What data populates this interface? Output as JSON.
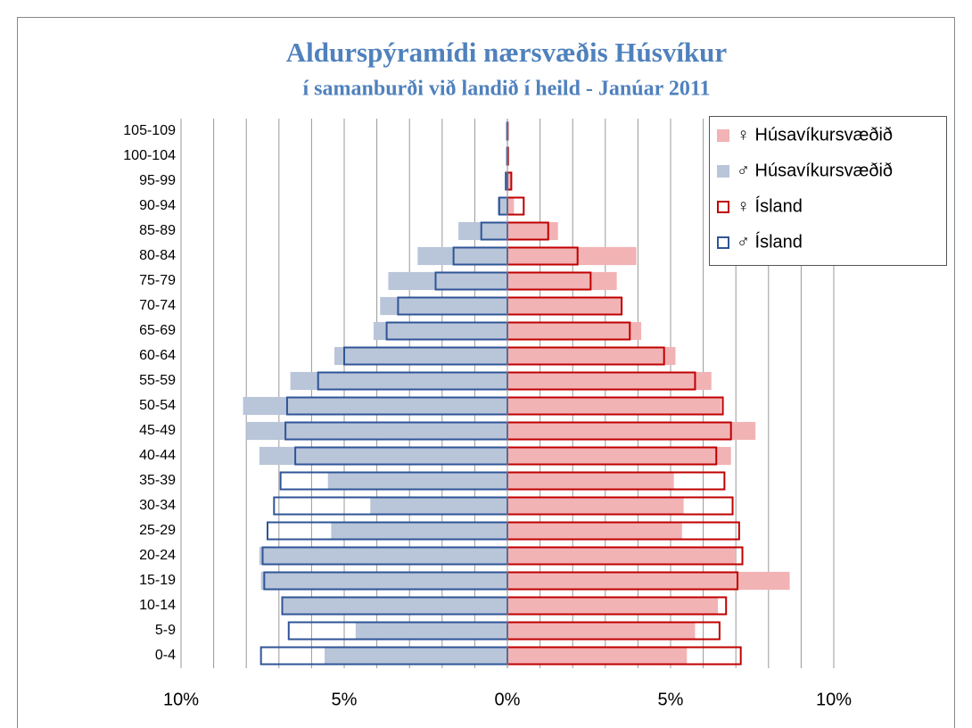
{
  "chart_data": {
    "type": "bar",
    "orientation": "horizontal",
    "title": "Aldurspýramídi nærsvæðis Húsvíkur",
    "subtitle": "í samanburði við landið í heild - Janúar 2011",
    "categories": [
      "0-4",
      "5-9",
      "10-14",
      "15-19",
      "20-24",
      "25-29",
      "30-34",
      "35-39",
      "40-44",
      "45-49",
      "50-54",
      "55-59",
      "60-64",
      "65-69",
      "70-74",
      "75-79",
      "80-84",
      "85-89",
      "90-94",
      "95-99",
      "100-104",
      "105-109"
    ],
    "series": [
      {
        "name": "♀ Húsavíkursvæðið",
        "style": "filled",
        "color": "#f2b3b5",
        "values": [
          5.5,
          5.75,
          6.45,
          8.65,
          7.0,
          5.35,
          5.4,
          5.1,
          6.85,
          7.6,
          6.55,
          6.25,
          5.15,
          4.1,
          3.5,
          3.35,
          3.95,
          1.55,
          0.2,
          0.1,
          0.01,
          0.01
        ]
      },
      {
        "name": "♂ Húsavíkursvæðið",
        "style": "filled",
        "color": "#b9c5d9",
        "values": [
          -5.6,
          -4.65,
          -6.9,
          -7.55,
          -7.6,
          -5.4,
          -4.2,
          -5.5,
          -7.6,
          -8.0,
          -8.1,
          -6.65,
          -5.3,
          -4.1,
          -3.9,
          -3.65,
          -2.75,
          -1.5,
          -0.3,
          -0.03,
          -0.01,
          -0.01
        ]
      },
      {
        "name": "♀ Ísland",
        "style": "outline",
        "color": "#c00000",
        "values": [
          7.15,
          6.5,
          6.7,
          7.05,
          7.2,
          7.1,
          6.9,
          6.65,
          6.4,
          6.85,
          6.6,
          5.75,
          4.8,
          3.75,
          3.5,
          2.55,
          2.15,
          1.25,
          0.5,
          0.12,
          0.02,
          0.01
        ]
      },
      {
        "name": "♂ Ísland",
        "style": "outline",
        "color": "#2f5597",
        "values": [
          -7.55,
          -6.7,
          -6.9,
          -7.45,
          -7.5,
          -7.35,
          -7.15,
          -6.95,
          -6.5,
          -6.8,
          -6.75,
          -5.8,
          -5.0,
          -3.7,
          -3.35,
          -2.2,
          -1.65,
          -0.8,
          -0.25,
          -0.05,
          -0.01,
          -0.01
        ]
      }
    ],
    "xlim": [
      -10,
      10
    ],
    "xticks": [
      {
        "value": -10,
        "label": "10%"
      },
      {
        "value": -5,
        "label": "5%"
      },
      {
        "value": 0,
        "label": "0%"
      },
      {
        "value": 5,
        "label": "5%"
      },
      {
        "value": 10,
        "label": "10%"
      }
    ],
    "xgrid": [
      -9,
      -8,
      -7,
      -6,
      -5,
      -4,
      -3,
      -2,
      -1,
      1,
      2,
      3,
      4,
      5,
      6,
      7,
      8,
      9
    ],
    "grid": true,
    "legend": "top-right"
  }
}
